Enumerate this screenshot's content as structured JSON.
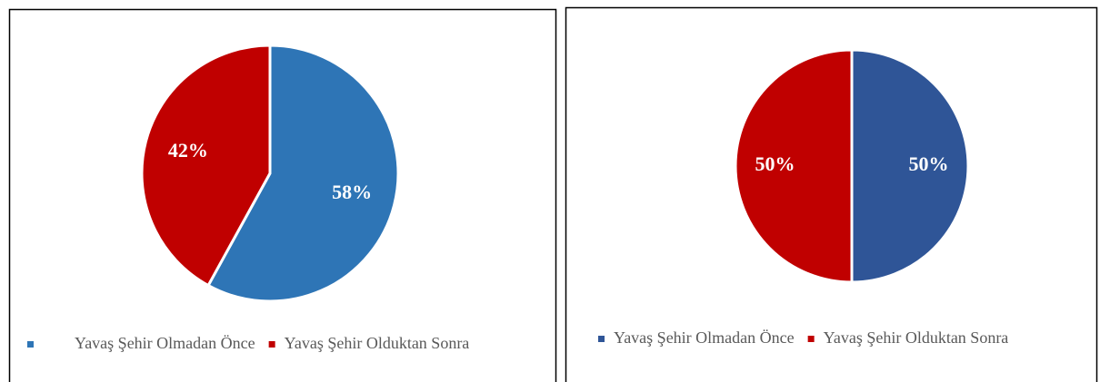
{
  "chart_data": [
    {
      "type": "pie",
      "categories": [
        "Yavaş Şehir Olmadan Önce",
        "Yavaş Şehir Olduktan Sonra"
      ],
      "values": [
        58,
        42
      ],
      "value_labels": [
        "58%",
        "42%"
      ],
      "colors": [
        "#2e75b6",
        "#c00000"
      ]
    },
    {
      "type": "pie",
      "categories": [
        "Yavaş Şehir Olmadan Önce",
        "Yavaş Şehir Olduktan Sonra"
      ],
      "values": [
        50,
        50
      ],
      "value_labels": [
        "50%",
        "50%"
      ],
      "colors": [
        "#2f5597",
        "#c00000"
      ]
    }
  ]
}
